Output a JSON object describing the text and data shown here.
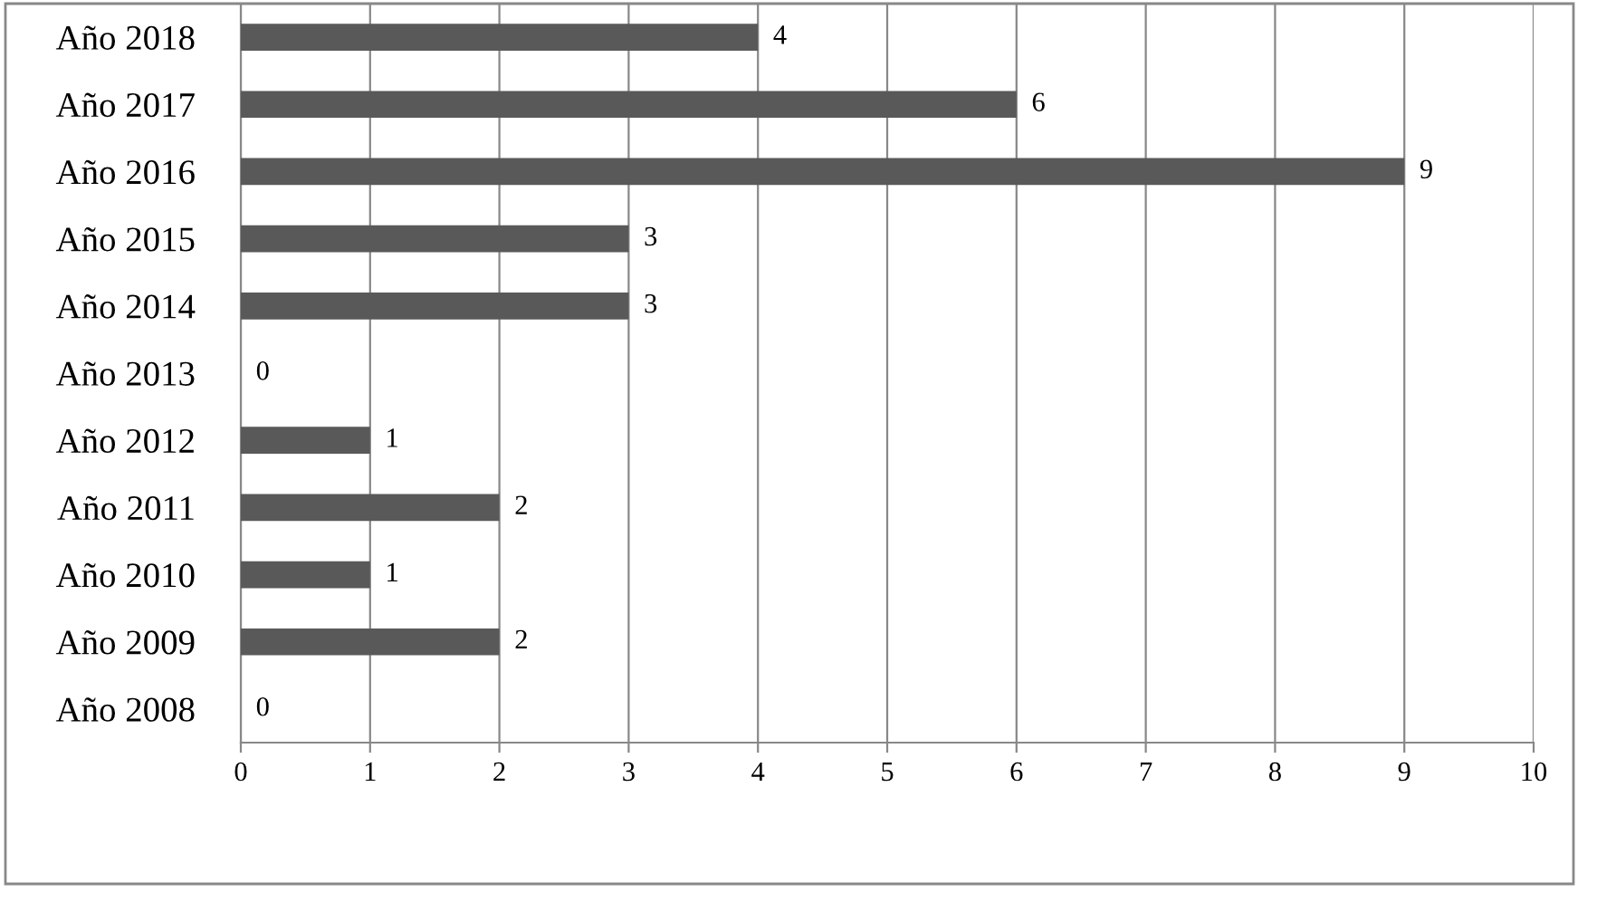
{
  "chart_data": {
    "type": "bar",
    "orientation": "horizontal",
    "categories": [
      "Año 2018",
      "Año 2017",
      "Año 2016",
      "Año 2015",
      "Año 2014",
      "Año 2013",
      "Año 2012",
      "Año 2011",
      "Año 2010",
      "Año 2009",
      "Año 2008"
    ],
    "values": [
      4,
      6,
      9,
      3,
      3,
      0,
      1,
      2,
      1,
      2,
      0
    ],
    "color": "#595959",
    "xlim": [
      0,
      10
    ],
    "xticks": [
      0,
      1,
      2,
      3,
      4,
      5,
      6,
      7,
      8,
      9,
      10
    ],
    "grid": "x",
    "data_labels": true,
    "legend": false
  }
}
